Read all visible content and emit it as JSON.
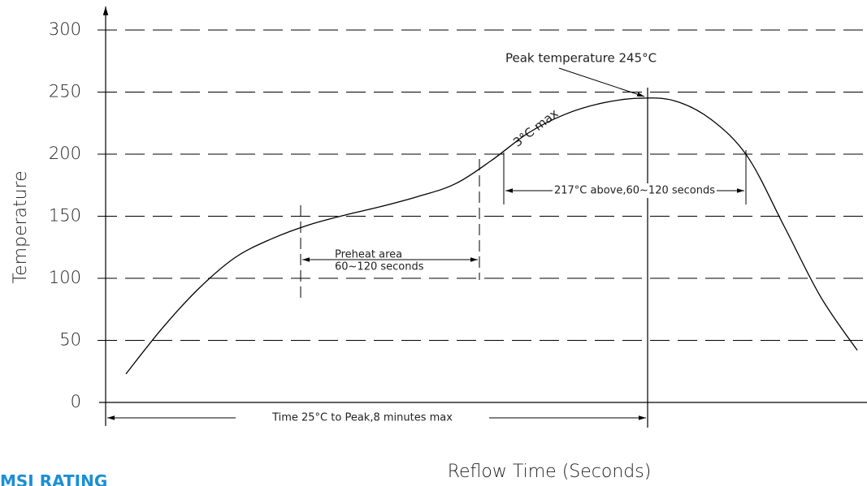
{
  "chart_data": {
    "type": "line",
    "ylabel": "Temperature",
    "xlabel": "Reflow Time (Seconds)",
    "categories": [
      null,
      null,
      null,
      null,
      null,
      null,
      null,
      null,
      null,
      null,
      null,
      null,
      null,
      null,
      null,
      null,
      null,
      null,
      null,
      null,
      null
    ],
    "series": [
      {
        "name": null,
        "color": "#000000",
        "values": [
          23,
          60,
          92,
          117,
          132,
          143,
          151,
          158,
          166,
          176,
          195,
          217,
          232,
          241,
          245,
          243,
          228,
          198,
          142,
          85,
          42
        ]
      }
    ],
    "ylim": [
      0,
      300
    ],
    "yticks": [
      0,
      50,
      100,
      150,
      200,
      250,
      300
    ],
    "grid": true,
    "annotations": [
      "Peak temperature 245°C",
      "3°C max",
      "217°C above,60~120 seconds",
      "Preheat area",
      "60~120 seconds",
      "Time 25°C to Peak,8 minutes max"
    ],
    "footer": "MSI RATING"
  }
}
